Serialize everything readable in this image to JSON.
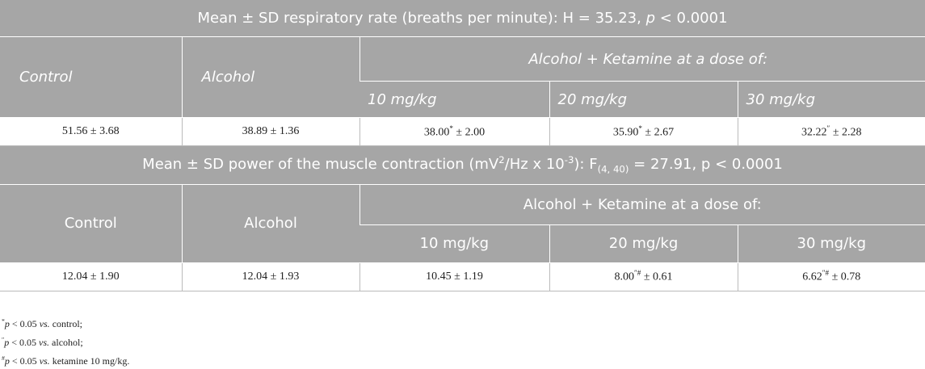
{
  "sections": [
    {
      "header_style": "italic",
      "title": [
        {
          "text": "Mean ± SD respiratory rate (breaths per minute): H = 35.23, "
        },
        {
          "text": "p",
          "style": "i"
        },
        {
          "text": " < 0.0001"
        }
      ],
      "groups": [
        "Control",
        "Alcohol",
        "Alcohol + Ketamine at a dose of:"
      ],
      "doses": [
        "10 mg/kg",
        "20 mg/kg",
        "30 mg/kg"
      ],
      "row": [
        [
          {
            "text": "51.56 ± 3.68"
          }
        ],
        [
          {
            "text": "38.89 ± 1.36"
          }
        ],
        [
          {
            "text": "38.00"
          },
          {
            "text": "*",
            "style": "sup"
          },
          {
            "text": " ± 2.00"
          }
        ],
        [
          {
            "text": "35.90"
          },
          {
            "text": "*",
            "style": "sup"
          },
          {
            "text": " ± 2.67"
          }
        ],
        [
          {
            "text": "32.22"
          },
          {
            "text": "″",
            "style": "sup"
          },
          {
            "text": " ± 2.28"
          }
        ]
      ]
    },
    {
      "header_style": "upright",
      "title": [
        {
          "text": "Mean ± SD power of the muscle contraction (mV"
        },
        {
          "text": "2",
          "style": "sup"
        },
        {
          "text": "/Hz x 10"
        },
        {
          "text": "-3",
          "style": "sup"
        },
        {
          "text": "): F"
        },
        {
          "text": "(4, 40)",
          "style": "sub"
        },
        {
          "text": " = 27.91, p < 0.0001"
        }
      ],
      "groups": [
        "Control",
        "Alcohol",
        "Alcohol + Ketamine at a dose of:"
      ],
      "doses": [
        "10 mg/kg",
        "20 mg/kg",
        "30 mg/kg"
      ],
      "row": [
        [
          {
            "text": "12.04 ± 1.90"
          }
        ],
        [
          {
            "text": "12.04 ± 1.93"
          }
        ],
        [
          {
            "text": "10.45 ± 1.19"
          }
        ],
        [
          {
            "text": "8.00"
          },
          {
            "text": "″#",
            "style": "sup"
          },
          {
            "text": " ± 0.61"
          }
        ],
        [
          {
            "text": "6.62"
          },
          {
            "text": "″#",
            "style": "sup"
          },
          {
            "text": " ± 0.78"
          }
        ]
      ]
    }
  ],
  "footnotes": [
    [
      {
        "text": "*",
        "style": "sup"
      },
      {
        "text": "p",
        "style": "i"
      },
      {
        "text": " < 0.05 "
      },
      {
        "text": "vs.",
        "style": "i"
      },
      {
        "text": " control;"
      }
    ],
    [
      {
        "text": "″",
        "style": "sup"
      },
      {
        "text": "p",
        "style": "i"
      },
      {
        "text": " < 0.05 "
      },
      {
        "text": "vs.",
        "style": "i"
      },
      {
        "text": " alcohol;"
      }
    ],
    [
      {
        "text": "#",
        "style": "sup"
      },
      {
        "text": "p",
        "style": "i"
      },
      {
        "text": " < 0.05 "
      },
      {
        "text": "vs.",
        "style": "i"
      },
      {
        "text": " ketamine 10 mg/kg."
      }
    ]
  ]
}
